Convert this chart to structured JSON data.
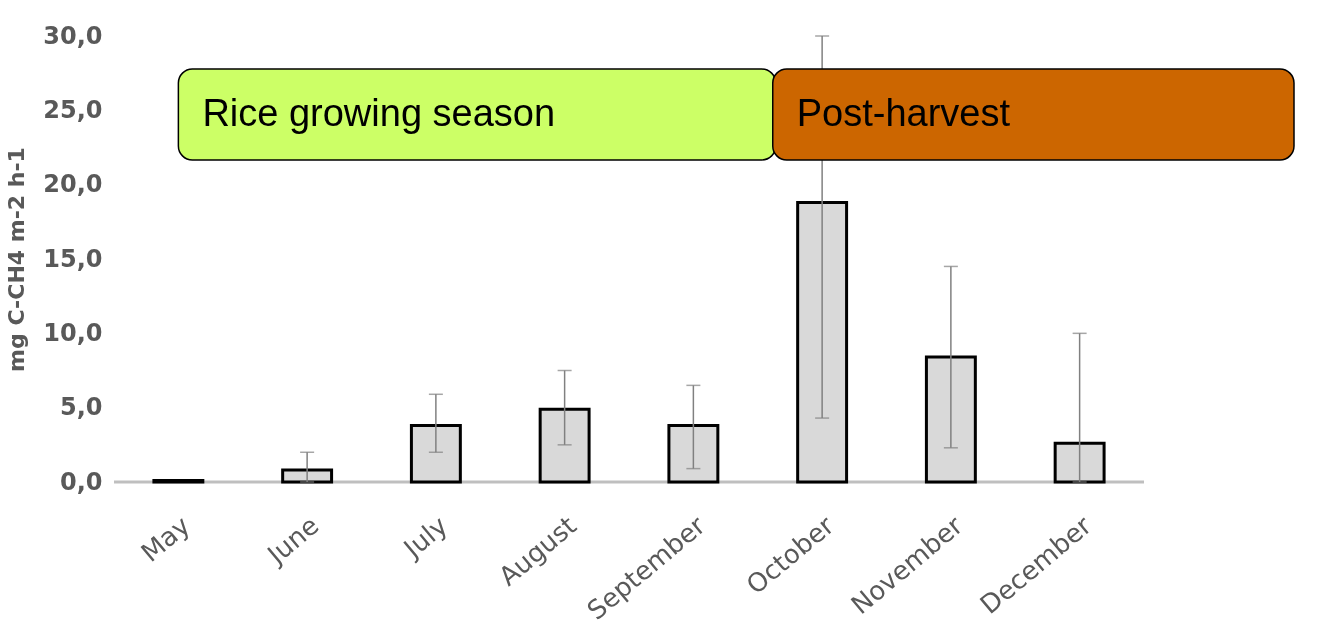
{
  "chart_data": {
    "type": "bar",
    "ylabel": "mg C-CH4 m-2 h-1",
    "categories": [
      "May",
      "June",
      "July",
      "August",
      "September",
      "October",
      "November",
      "December"
    ],
    "values": [
      0.1,
      0.8,
      3.8,
      4.9,
      3.8,
      18.8,
      8.4,
      2.6
    ],
    "errors": [
      null,
      [
        0,
        2.0
      ],
      [
        2.0,
        5.9
      ],
      [
        2.5,
        7.5
      ],
      [
        0.9,
        6.5
      ],
      [
        4.3,
        30
      ],
      [
        2.3,
        14.5
      ],
      [
        0,
        10.0
      ]
    ],
    "color": "#d9d9d9",
    "ylim": [
      0,
      30
    ],
    "yticks": [
      {
        "value": 0,
        "label": "0,0"
      },
      {
        "value": 5,
        "label": "5,0"
      },
      {
        "value": 10,
        "label": "10,0"
      },
      {
        "value": 15,
        "label": "15,0"
      },
      {
        "value": 20,
        "label": "20,0"
      },
      {
        "value": 25,
        "label": "25,0"
      },
      {
        "value": 30,
        "label": "30,0"
      }
    ],
    "bands": [
      {
        "axis": "x",
        "from": "May",
        "to": "September",
        "label": "Rice growing season",
        "color": "#ccff66"
      },
      {
        "axis": "x",
        "from": "October",
        "to": "December",
        "label": "Post-harvest",
        "color": "#cc6600"
      }
    ],
    "grid": false
  }
}
